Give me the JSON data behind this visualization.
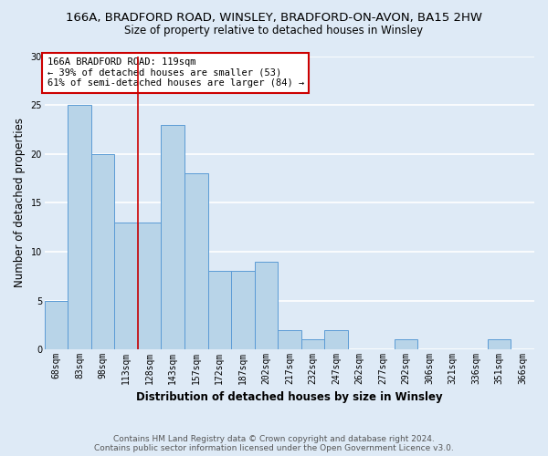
{
  "title_line1": "166A, BRADFORD ROAD, WINSLEY, BRADFORD-ON-AVON, BA15 2HW",
  "title_line2": "Size of property relative to detached houses in Winsley",
  "xlabel": "Distribution of detached houses by size in Winsley",
  "ylabel": "Number of detached properties",
  "categories": [
    "68sqm",
    "83sqm",
    "98sqm",
    "113sqm",
    "128sqm",
    "143sqm",
    "157sqm",
    "172sqm",
    "187sqm",
    "202sqm",
    "217sqm",
    "232sqm",
    "247sqm",
    "262sqm",
    "277sqm",
    "292sqm",
    "306sqm",
    "321sqm",
    "336sqm",
    "351sqm",
    "366sqm"
  ],
  "values": [
    5,
    25,
    20,
    13,
    13,
    23,
    18,
    8,
    8,
    9,
    2,
    1,
    2,
    0,
    0,
    1,
    0,
    0,
    0,
    1,
    0
  ],
  "bar_color": "#b8d4e8",
  "bar_edge_color": "#5b9bd5",
  "background_color": "#deeaf6",
  "plot_bg_color": "#deeaf6",
  "grid_color": "#ffffff",
  "annotation_text": "166A BRADFORD ROAD: 119sqm\n← 39% of detached houses are smaller (53)\n61% of semi-detached houses are larger (84) →",
  "annotation_box_color": "#ffffff",
  "annotation_box_edge": "#cc0000",
  "vline_color": "#cc0000",
  "ylim": [
    0,
    30
  ],
  "yticks": [
    0,
    5,
    10,
    15,
    20,
    25,
    30
  ],
  "footer": "Contains HM Land Registry data © Crown copyright and database right 2024.\nContains public sector information licensed under the Open Government Licence v3.0.",
  "title_fontsize": 9.5,
  "subtitle_fontsize": 8.5,
  "axis_label_fontsize": 8.5,
  "tick_fontsize": 7,
  "annotation_fontsize": 7.5,
  "footer_fontsize": 6.5
}
